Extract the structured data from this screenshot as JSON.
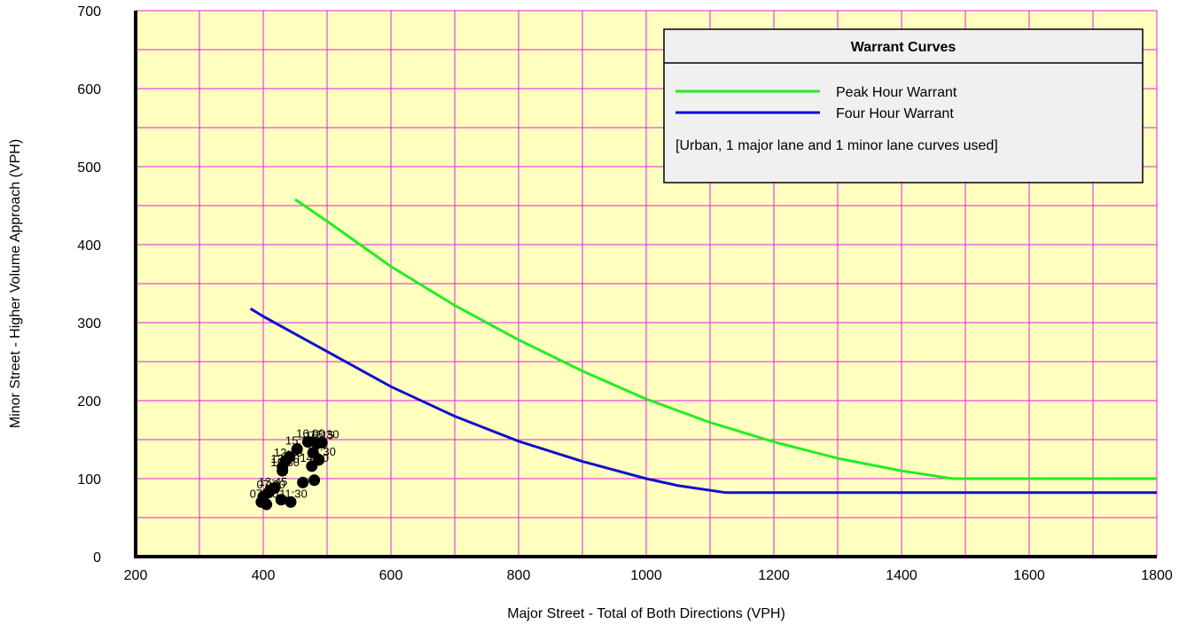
{
  "chart_data": {
    "type": "line",
    "title": "",
    "xlabel": "Major Street - Total of Both Directions (VPH)",
    "ylabel": "Minor Street - Higher Volume Approach (VPH)",
    "xlim": [
      200,
      1800
    ],
    "ylim": [
      0,
      700
    ],
    "x_ticks": [
      200,
      400,
      600,
      800,
      1000,
      1200,
      1400,
      1600,
      1800
    ],
    "y_ticks": [
      0,
      100,
      200,
      300,
      400,
      500,
      600,
      700
    ],
    "grid": true,
    "colors": {
      "plot_background": "#ffffc0",
      "grid": "#e020e0",
      "peak_curve": "#22ee22",
      "four_hour_curve": "#1010cc",
      "points": "#000000",
      "legend_background": "#f0f0f0"
    },
    "legend": {
      "title": "Warrant Curves",
      "placement": "top-right",
      "note": "[Urban,  1 major lane and 1 minor lane curves used]"
    },
    "series": [
      {
        "name": "Peak Hour Warrant",
        "color": "#22ee22",
        "points": [
          [
            450,
            458
          ],
          [
            500,
            430
          ],
          [
            600,
            372
          ],
          [
            700,
            322
          ],
          [
            800,
            278
          ],
          [
            900,
            238
          ],
          [
            1000,
            202
          ],
          [
            1100,
            172
          ],
          [
            1200,
            147
          ],
          [
            1300,
            126
          ],
          [
            1400,
            110
          ],
          [
            1480,
            100
          ],
          [
            1800,
            100
          ]
        ]
      },
      {
        "name": "Four Hour Warrant",
        "color": "#1010cc",
        "points": [
          [
            380,
            318
          ],
          [
            400,
            308
          ],
          [
            500,
            263
          ],
          [
            600,
            218
          ],
          [
            700,
            180
          ],
          [
            800,
            148
          ],
          [
            900,
            122
          ],
          [
            1000,
            100
          ],
          [
            1050,
            91
          ],
          [
            1125,
            82
          ],
          [
            1800,
            82
          ]
        ]
      }
    ],
    "points": [
      {
        "x": 397,
        "y": 70,
        "label": "07:00"
      },
      {
        "x": 405,
        "y": 67,
        "label": ""
      },
      {
        "x": 400,
        "y": 77,
        "label": ""
      },
      {
        "x": 408,
        "y": 82,
        "label": "07:30"
      },
      {
        "x": 418,
        "y": 88,
        "label": ""
      },
      {
        "x": 428,
        "y": 73,
        "label": ""
      },
      {
        "x": 443,
        "y": 70,
        "label": "11:30"
      },
      {
        "x": 462,
        "y": 95,
        "label": ""
      },
      {
        "x": 480,
        "y": 98,
        "label": ""
      },
      {
        "x": 411,
        "y": 85,
        "label": "13:45"
      },
      {
        "x": 430,
        "y": 110,
        "label": "12:30"
      },
      {
        "x": 435,
        "y": 123,
        "label": "12:15"
      },
      {
        "x": 441,
        "y": 128,
        "label": ""
      },
      {
        "x": 430,
        "y": 115,
        "label": "12:00"
      },
      {
        "x": 453,
        "y": 138,
        "label": "15:30"
      },
      {
        "x": 470,
        "y": 147,
        "label": "16:00"
      },
      {
        "x": 476,
        "y": 116,
        "label": "14:00"
      },
      {
        "x": 478,
        "y": 133,
        "label": ""
      },
      {
        "x": 484,
        "y": 145,
        "label": "16:15"
      },
      {
        "x": 487,
        "y": 124,
        "label": "14:30"
      },
      {
        "x": 492,
        "y": 146,
        "label": "16:30"
      }
    ]
  }
}
